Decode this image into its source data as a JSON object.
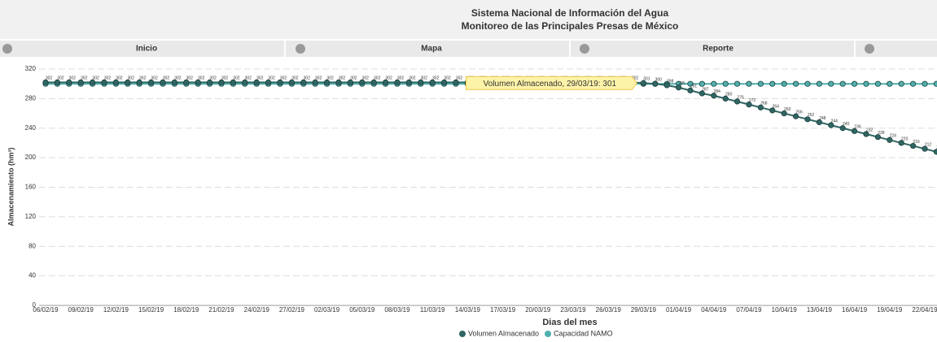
{
  "header": {
    "title_line1": "Sistema Nacional de Información del Agua",
    "title_line2": "Monitoreo de las Principales Presas de México"
  },
  "nav": [
    "Inicio",
    "Mapa",
    "Reporte"
  ],
  "chart_data": {
    "type": "line",
    "y_axis_label": "Almacenamiento (hm³)",
    "x_axis_label": "Dias del mes",
    "tooltip": "Volumen Almacenado, 29/03/19: 301",
    "categories": [
      "06/02/19",
      null,
      null,
      "09/02/19",
      null,
      null,
      "12/02/19",
      null,
      null,
      "15/02/19",
      null,
      null,
      "18/02/19",
      null,
      null,
      "21/02/19",
      null,
      null,
      "24/02/19",
      null,
      null,
      "27/02/19",
      null,
      null,
      "02/03/19",
      null,
      null,
      "05/03/19",
      null,
      null,
      "08/03/19",
      null,
      null,
      "11/03/19",
      null,
      null,
      "14/03/19",
      null,
      null,
      "17/03/19",
      null,
      null,
      "20/03/19",
      null,
      null,
      "23/03/19",
      null,
      null,
      "26/03/19",
      null,
      null,
      "29/03/19",
      null,
      null,
      "01/04/19",
      null,
      null,
      "04/04/19",
      null,
      null,
      "07/04/19",
      null,
      null,
      "10/04/19",
      null,
      null,
      "13/04/19",
      null,
      null,
      "16/04/19",
      null,
      null,
      "19/04/19",
      null,
      null,
      "22/04/19",
      null
    ],
    "series": [
      {
        "name": "Volumen Almacenado",
        "color": "#2f6663",
        "values": [
          302,
          302,
          302,
          302,
          302,
          302,
          302,
          302,
          302,
          302,
          302,
          302,
          302,
          302,
          302,
          302,
          302,
          302,
          302,
          302,
          302,
          302,
          302,
          302,
          302,
          302,
          302,
          302,
          302,
          302,
          302,
          302,
          302,
          302,
          302,
          302,
          302,
          302,
          302,
          302,
          302,
          302,
          302,
          302,
          302,
          302,
          302,
          302,
          302,
          302,
          302,
          301,
          300,
          298,
          295,
          291,
          287,
          284,
          280,
          276,
          272,
          268,
          264,
          260,
          256,
          252,
          248,
          244,
          240,
          236,
          232,
          228,
          224,
          220,
          216,
          212,
          208
        ]
      },
      {
        "name": "Capacidad NAMO",
        "color": "#4fb0ad",
        "values": [
          300,
          300,
          300,
          300,
          300,
          300,
          300,
          300,
          300,
          300,
          300,
          300,
          300,
          300,
          300,
          300,
          300,
          300,
          300,
          300,
          300,
          300,
          300,
          300,
          300,
          300,
          300,
          300,
          300,
          300,
          300,
          300,
          300,
          300,
          300,
          300,
          300,
          300,
          300,
          300,
          300,
          300,
          300,
          300,
          300,
          300,
          300,
          300,
          300,
          300,
          300,
          300,
          300,
          300,
          300,
          300,
          300,
          300,
          300,
          300,
          300,
          300,
          300,
          300,
          300,
          300,
          300,
          300,
          300,
          300,
          300,
          300,
          300,
          300,
          300,
          300,
          300
        ]
      }
    ],
    "ylim": [
      0,
      320
    ],
    "yticks": [
      0,
      40,
      80,
      120,
      160,
      200,
      240,
      280,
      320
    ],
    "grid": true
  }
}
